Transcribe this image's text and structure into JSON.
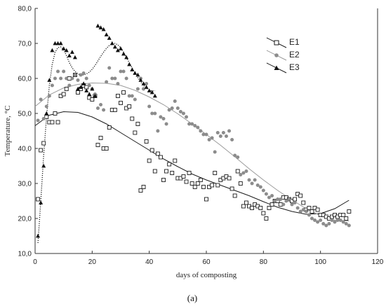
{
  "figure": {
    "caption": "(a)"
  },
  "chart_data": {
    "type": "scatter",
    "xlabel": "days of composting",
    "ylabel": "Temperature, °C",
    "xlim": [
      0,
      120
    ],
    "ylim": [
      10,
      80
    ],
    "xticks": [
      "0",
      "20",
      "40",
      "60",
      "80",
      "100",
      "120"
    ],
    "yticks": [
      "10,0",
      "20,0",
      "30,0",
      "40,0",
      "50,0",
      "60,0",
      "70,0",
      "80,0"
    ],
    "grid": false,
    "legend_position": "top-right",
    "series": [
      {
        "name": "E1",
        "marker": "open-square",
        "line_color": "#1a1a1a",
        "points": [
          [
            1,
            25.5
          ],
          [
            2,
            39.5
          ],
          [
            3,
            41.5
          ],
          [
            4,
            49
          ],
          [
            5,
            47.5
          ],
          [
            6,
            47.5
          ],
          [
            7,
            50
          ],
          [
            8,
            47.5
          ],
          [
            9,
            55
          ],
          [
            10,
            55.5
          ],
          [
            11,
            57
          ],
          [
            12,
            60
          ],
          [
            14,
            61
          ],
          [
            15,
            56
          ],
          [
            16,
            57
          ],
          [
            17,
            58
          ],
          [
            18,
            57.5
          ],
          [
            19,
            54.5
          ],
          [
            20,
            54
          ],
          [
            21,
            55
          ],
          [
            22,
            41
          ],
          [
            23,
            43
          ],
          [
            24,
            40
          ],
          [
            25,
            40
          ],
          [
            26,
            46
          ],
          [
            27,
            51
          ],
          [
            28,
            51
          ],
          [
            29,
            55
          ],
          [
            30,
            53
          ],
          [
            31,
            56
          ],
          [
            32,
            51.5
          ],
          [
            33,
            52
          ],
          [
            34,
            48.5
          ],
          [
            35,
            44.5
          ],
          [
            36,
            47
          ],
          [
            37,
            28
          ],
          [
            38,
            29
          ],
          [
            39,
            42
          ],
          [
            40,
            36.5
          ],
          [
            41,
            39.5
          ],
          [
            42,
            33.5
          ],
          [
            43,
            38.5
          ],
          [
            44,
            37.5
          ],
          [
            45,
            31
          ],
          [
            46,
            33.5
          ],
          [
            47,
            35.5
          ],
          [
            48,
            33
          ],
          [
            49,
            36.5
          ],
          [
            50,
            31.5
          ],
          [
            51,
            31.5
          ],
          [
            52,
            32
          ],
          [
            53,
            30.5
          ],
          [
            54,
            33
          ],
          [
            55,
            30
          ],
          [
            56,
            29
          ],
          [
            57,
            30
          ],
          [
            58,
            31
          ],
          [
            59,
            29
          ],
          [
            60,
            25.5
          ],
          [
            61,
            29
          ],
          [
            62,
            29.5
          ],
          [
            63,
            33
          ],
          [
            64,
            29.5
          ],
          [
            65,
            31
          ],
          [
            66,
            31.5
          ],
          [
            67,
            32
          ],
          [
            68,
            31.5
          ],
          [
            69,
            28.5
          ],
          [
            70,
            26.5
          ],
          [
            71,
            33.5
          ],
          [
            72,
            30
          ],
          [
            73,
            23.5
          ],
          [
            74,
            24.5
          ],
          [
            75,
            23.5
          ],
          [
            76,
            23
          ],
          [
            77,
            24
          ],
          [
            78,
            23.5
          ],
          [
            79,
            23
          ],
          [
            80,
            21.5
          ],
          [
            81,
            20
          ],
          [
            82,
            23
          ],
          [
            83,
            24
          ],
          [
            84,
            25
          ],
          [
            85,
            25
          ],
          [
            86,
            24
          ],
          [
            87,
            26
          ],
          [
            88,
            26
          ],
          [
            89,
            25.5
          ],
          [
            90,
            25
          ],
          [
            91,
            25.5
          ],
          [
            92,
            27
          ],
          [
            93,
            26.5
          ],
          [
            94,
            24.5
          ],
          [
            95,
            22.5
          ],
          [
            96,
            23
          ],
          [
            97,
            22
          ],
          [
            98,
            23
          ],
          [
            99,
            22.5
          ],
          [
            100,
            21
          ],
          [
            101,
            21
          ],
          [
            102,
            20.5
          ],
          [
            103,
            20
          ],
          [
            104,
            20.5
          ],
          [
            105,
            21
          ],
          [
            106,
            20.5
          ],
          [
            107,
            21
          ],
          [
            108,
            21
          ],
          [
            109,
            20
          ],
          [
            110,
            22
          ]
        ]
      },
      {
        "name": "E2",
        "marker": "filled-circle",
        "line_color": "#9a9a9a",
        "points": [
          [
            1,
            48
          ],
          [
            2,
            54
          ],
          [
            3,
            48.5
          ],
          [
            4,
            52
          ],
          [
            5,
            55
          ],
          [
            6,
            58
          ],
          [
            7,
            60
          ],
          [
            8,
            62
          ],
          [
            9,
            60
          ],
          [
            10,
            62
          ],
          [
            11,
            60
          ],
          [
            12,
            58
          ],
          [
            13,
            60
          ],
          [
            14,
            61
          ],
          [
            15,
            59.5
          ],
          [
            16,
            61
          ],
          [
            17,
            61.5
          ],
          [
            18,
            60
          ],
          [
            19,
            58
          ],
          [
            20,
            57
          ],
          [
            21,
            55.5
          ],
          [
            22,
            51.5
          ],
          [
            23,
            52.5
          ],
          [
            24,
            51
          ],
          [
            25,
            59
          ],
          [
            26,
            63
          ],
          [
            27,
            60
          ],
          [
            28,
            60
          ],
          [
            29,
            58.5
          ],
          [
            30,
            62
          ],
          [
            31,
            62
          ],
          [
            32,
            60
          ],
          [
            33,
            55
          ],
          [
            34,
            55
          ],
          [
            35,
            54
          ],
          [
            36,
            57
          ],
          [
            37,
            60
          ],
          [
            38,
            57
          ],
          [
            39,
            58.5
          ],
          [
            40,
            52
          ],
          [
            41,
            50
          ],
          [
            42,
            50
          ],
          [
            43,
            45
          ],
          [
            44,
            49
          ],
          [
            45,
            48.5
          ],
          [
            46,
            47
          ],
          [
            47,
            51
          ],
          [
            48,
            51.5
          ],
          [
            49,
            53.5
          ],
          [
            50,
            51.5
          ],
          [
            51,
            50.5
          ],
          [
            52,
            50
          ],
          [
            53,
            49
          ],
          [
            54,
            47
          ],
          [
            55,
            47
          ],
          [
            56,
            46.5
          ],
          [
            57,
            46
          ],
          [
            58,
            45
          ],
          [
            59,
            44
          ],
          [
            60,
            44
          ],
          [
            61,
            42.5
          ],
          [
            62,
            43
          ],
          [
            63,
            39
          ],
          [
            64,
            44.5
          ],
          [
            65,
            43.5
          ],
          [
            66,
            44.5
          ],
          [
            67,
            43.5
          ],
          [
            68,
            45
          ],
          [
            69,
            42.5
          ],
          [
            70,
            38
          ],
          [
            71,
            37.5
          ],
          [
            72,
            32.5
          ],
          [
            73,
            33
          ],
          [
            74,
            33.5
          ],
          [
            75,
            31
          ],
          [
            76,
            30
          ],
          [
            77,
            31
          ],
          [
            78,
            29.5
          ],
          [
            79,
            29
          ],
          [
            80,
            28
          ],
          [
            81,
            27
          ],
          [
            82,
            26
          ],
          [
            83,
            26.5
          ],
          [
            84,
            25
          ],
          [
            85,
            25.5
          ],
          [
            86,
            25.5
          ],
          [
            87,
            24
          ],
          [
            88,
            25
          ],
          [
            89,
            25.5
          ],
          [
            90,
            24
          ],
          [
            91,
            24.5
          ],
          [
            92,
            23
          ],
          [
            93,
            22
          ],
          [
            94,
            22.5
          ],
          [
            95,
            22
          ],
          [
            96,
            21
          ],
          [
            97,
            20
          ],
          [
            98,
            19.5
          ],
          [
            99,
            19
          ],
          [
            100,
            19.5
          ],
          [
            101,
            18.5
          ],
          [
            102,
            18
          ],
          [
            103,
            18.5
          ],
          [
            104,
            19.5
          ],
          [
            105,
            19
          ],
          [
            106,
            19.5
          ],
          [
            107,
            19.5
          ],
          [
            108,
            19
          ],
          [
            109,
            18.5
          ],
          [
            110,
            18
          ]
        ]
      },
      {
        "name": "E3",
        "marker": "filled-triangle",
        "line_color": "#1a1a1a",
        "line_style": "dotted",
        "points": [
          [
            1,
            15
          ],
          [
            2,
            24.5
          ],
          [
            3,
            35
          ],
          [
            4,
            50
          ],
          [
            5,
            59.5
          ],
          [
            6,
            68
          ],
          [
            7,
            70
          ],
          [
            8,
            70
          ],
          [
            9,
            70
          ],
          [
            10,
            68.5
          ],
          [
            11,
            68
          ],
          [
            12,
            66.5
          ],
          [
            13,
            67.5
          ],
          [
            14,
            66
          ],
          [
            15,
            57
          ],
          [
            16,
            57.5
          ],
          [
            17,
            58.5
          ],
          [
            18,
            56.5
          ],
          [
            19,
            55.5
          ],
          [
            20,
            57
          ],
          [
            21,
            55
          ],
          [
            22,
            75
          ],
          [
            23,
            74.5
          ],
          [
            24,
            74
          ],
          [
            25,
            72.5
          ],
          [
            26,
            71.5
          ],
          [
            27,
            70
          ],
          [
            28,
            69
          ],
          [
            29,
            68
          ],
          [
            30,
            68.5
          ],
          [
            31,
            67
          ],
          [
            32,
            66
          ],
          [
            33,
            64
          ],
          [
            34,
            62.5
          ],
          [
            35,
            61.5
          ],
          [
            36,
            61
          ],
          [
            37,
            59.5
          ],
          [
            38,
            58.5
          ],
          [
            39,
            57.5
          ],
          [
            40,
            56.5
          ],
          [
            41,
            56
          ],
          [
            42,
            55
          ]
        ]
      }
    ],
    "trendlines": [
      {
        "series": "E1",
        "x": [
          0,
          5,
          10,
          15,
          20,
          25,
          30,
          35,
          40,
          45,
          50,
          55,
          60,
          65,
          70,
          75,
          80,
          85,
          90,
          95,
          100,
          105,
          110
        ],
        "y": [
          46.5,
          49.5,
          50.5,
          50.3,
          49,
          47,
          44.5,
          42,
          39.5,
          37,
          34.8,
          32.7,
          31,
          29.5,
          28,
          26.5,
          24.8,
          23.2,
          22,
          21.2,
          21.4,
          22.8,
          25.2
        ]
      },
      {
        "series": "E2",
        "x": [
          0,
          5,
          10,
          15,
          20,
          25,
          30,
          35,
          40,
          45,
          50,
          55,
          60,
          65,
          70,
          75,
          80,
          85,
          90,
          95,
          100,
          105,
          110
        ],
        "y": [
          52,
          55.3,
          57.3,
          58.3,
          58.7,
          58.6,
          58,
          56.6,
          54.7,
          52.5,
          49.9,
          47,
          44,
          40.9,
          37.6,
          34.2,
          31,
          28,
          25.3,
          22.8,
          20.8,
          19.5,
          19.3
        ]
      },
      {
        "series": "E3",
        "x": [
          1,
          2,
          3,
          4,
          5,
          6,
          7,
          8,
          9,
          10,
          11,
          12,
          13,
          14,
          15,
          16,
          17,
          18,
          19,
          20,
          21,
          22,
          23,
          24,
          25,
          26,
          27,
          28,
          29,
          30,
          31,
          32,
          33,
          34,
          35,
          36,
          37,
          38,
          39,
          40,
          41,
          42
        ],
        "y": [
          13,
          25,
          38,
          49,
          58,
          64,
          67.5,
          68.8,
          69,
          68.2,
          66.5,
          64.5,
          63,
          62,
          61.3,
          61,
          61,
          61.3,
          61.8,
          62.6,
          63.7,
          65,
          66.3,
          67.5,
          68.6,
          69.4,
          69.9,
          70,
          69.6,
          68.8,
          67.5,
          66,
          64.5,
          63,
          61.5,
          60.2,
          59,
          58,
          57.2,
          56.7,
          56.4,
          56.5
        ]
      }
    ],
    "legend": [
      {
        "name": "E1",
        "marker": "open-square",
        "line_color": "#1a1a1a"
      },
      {
        "name": "E2",
        "marker": "filled-circle",
        "line_color": "#9a9a9a"
      },
      {
        "name": "E3",
        "marker": "filled-triangle",
        "line_color": "#1a1a1a"
      }
    ],
    "colors": {
      "marker_e2": "#8c8c8c",
      "marker_e1": "#1a1a1a",
      "marker_e3": "#111111",
      "axis": "#333333"
    }
  }
}
